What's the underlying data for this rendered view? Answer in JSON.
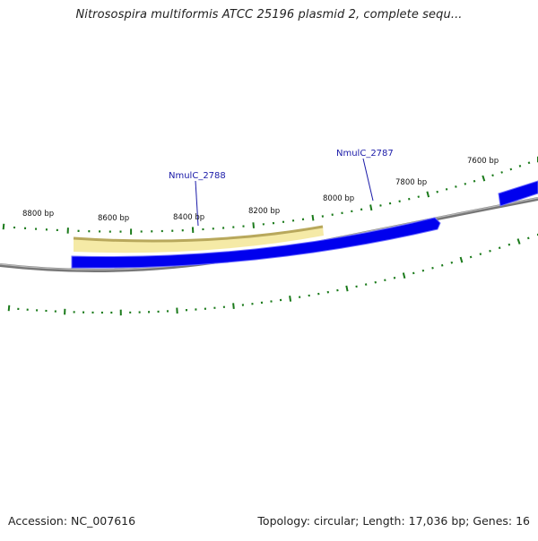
{
  "title": "Nitrosospira multiformis ATCC 25196 plasmid 2, complete sequ...",
  "accession": "Accession: NC_007616",
  "topology": "Topology: circular; Length: 17,036 bp; Genes: 16",
  "colors": {
    "backbone": "#888888",
    "forward_gene": "#0000ee",
    "selected_gene_fill": "#f5eaa6",
    "selected_gene_edge": "#b8a85c",
    "tick": "#1a7a1a",
    "gene_label": "#1a1aa8"
  },
  "ruler_labels": [
    {
      "text": "8800 bp"
    },
    {
      "text": "8600 bp"
    },
    {
      "text": "8400 bp"
    },
    {
      "text": "8200 bp"
    },
    {
      "text": "8000 bp"
    },
    {
      "text": "7800 bp"
    },
    {
      "text": "7600 bp"
    }
  ],
  "gene_labels": [
    {
      "text": "NmulC_2788"
    },
    {
      "text": "NmulC_2787"
    }
  ]
}
